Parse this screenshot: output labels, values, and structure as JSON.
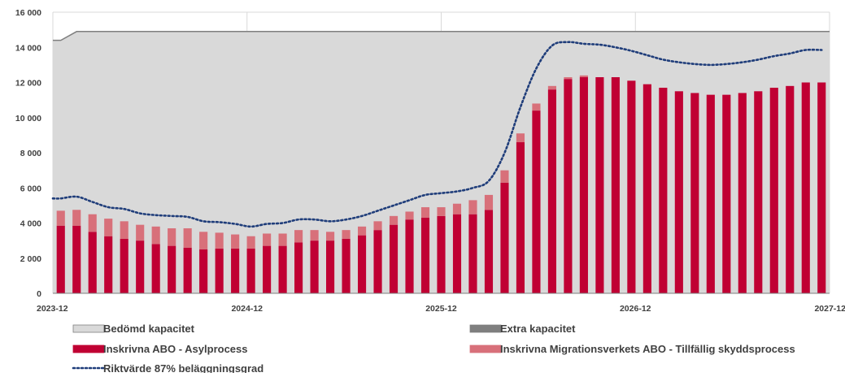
{
  "chart_data": {
    "type": "bar",
    "x_ticks": [
      "2023-12",
      "2024-12",
      "2025-12",
      "2026-12",
      "2027-12"
    ],
    "y_ticks": [
      "0",
      "2 000",
      "4 000",
      "6 000",
      "8 000",
      "10 000",
      "12 000",
      "14 000",
      "16 000"
    ],
    "ylim": [
      0,
      16000
    ],
    "grid": true,
    "legend_position": "bottom",
    "colors": {
      "capacity": "#d9d9d9",
      "capacity_edge": "#7f7f7f",
      "extra": "#7f7f7f",
      "asyl": "#c00033",
      "tillfallig": "#d8707a",
      "target": "#1f3d7a"
    },
    "series": [
      {
        "name": "Bedömd kapacitet",
        "kind": "area",
        "values": [
          14400,
          14900,
          14900,
          14900,
          14900,
          14900,
          14900,
          14900,
          14900,
          14900,
          14900,
          14900,
          14900,
          14900,
          14900,
          14900,
          14900,
          14900,
          14900,
          14900,
          14900,
          14900,
          14900,
          14900,
          14900,
          14900,
          14900,
          14900,
          14900,
          14900,
          14900,
          14900,
          14900,
          14900,
          14900,
          14900,
          14900,
          14900,
          14900,
          14900,
          14900,
          14900,
          14900,
          14900,
          14900,
          14900,
          14900,
          14900,
          14900
        ]
      },
      {
        "name": "Extra kapacitet",
        "kind": "area",
        "values": [
          0,
          0,
          0,
          0,
          0,
          0,
          0,
          0,
          0,
          0,
          0,
          0,
          0,
          0,
          0,
          0,
          0,
          0,
          0,
          0,
          0,
          0,
          0,
          0,
          0,
          0,
          0,
          0,
          0,
          0,
          0,
          0,
          0,
          0,
          0,
          0,
          0,
          0,
          0,
          0,
          0,
          0,
          0,
          0,
          0,
          0,
          0,
          0,
          0
        ]
      },
      {
        "name": "Inskrivna ABO - Asylprocess",
        "kind": "bar",
        "values": [
          3850,
          3850,
          3500,
          3250,
          3100,
          3000,
          2800,
          2700,
          2600,
          2500,
          2550,
          2550,
          2550,
          2700,
          2700,
          2900,
          3000,
          3000,
          3100,
          3300,
          3600,
          3900,
          4200,
          4300,
          4400,
          4500,
          4500,
          4750,
          6300,
          8600,
          10400,
          11600,
          12200,
          12300,
          12300,
          12300,
          12100,
          11900,
          11700,
          11500,
          11400,
          11300,
          11300,
          11400,
          11500,
          11700,
          11800,
          12000,
          12000
        ]
      },
      {
        "name": "Inskrivna Migrationsverkets ABO - Tillfällig skyddsprocess",
        "kind": "bar",
        "values": [
          850,
          900,
          1000,
          1000,
          1000,
          900,
          1000,
          1000,
          1100,
          1000,
          900,
          800,
          700,
          700,
          700,
          700,
          600,
          500,
          500,
          500,
          500,
          500,
          450,
          600,
          500,
          600,
          800,
          850,
          700,
          500,
          400,
          200,
          100,
          100,
          0,
          0,
          0,
          0,
          0,
          0,
          0,
          0,
          0,
          0,
          0,
          0,
          0,
          0,
          0
        ]
      },
      {
        "name": "Riktvärde  87% beläggningsgrad",
        "kind": "line",
        "values": [
          5400,
          5500,
          5200,
          4900,
          4800,
          4550,
          4450,
          4400,
          4350,
          4100,
          4050,
          3950,
          3800,
          3950,
          4000,
          4200,
          4200,
          4100,
          4200,
          4400,
          4700,
          5000,
          5300,
          5600,
          5700,
          5800,
          6000,
          6400,
          8000,
          10600,
          12800,
          14100,
          14300,
          14200,
          14150,
          14000,
          13800,
          13550,
          13300,
          13150,
          13050,
          13000,
          13050,
          13150,
          13300,
          13500,
          13650,
          13850,
          13850
        ]
      }
    ]
  }
}
